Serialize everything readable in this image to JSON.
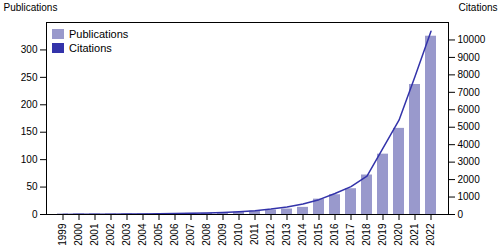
{
  "chart_data": {
    "type": "bar",
    "categories": [
      "1999",
      "2000",
      "2001",
      "2002",
      "2003",
      "2004",
      "2005",
      "2006",
      "2007",
      "2008",
      "2009",
      "2010",
      "2011",
      "2012",
      "2013",
      "2014",
      "2015",
      "2016",
      "2017",
      "2018",
      "2019",
      "2020",
      "2021",
      "2022"
    ],
    "series": [
      {
        "name": "Publications",
        "type": "bar",
        "color": "#9999cc",
        "values": [
          1,
          1,
          1,
          1,
          1,
          1,
          1,
          1,
          2,
          2,
          3,
          4,
          6,
          8,
          10,
          13,
          28,
          36,
          47,
          72,
          110,
          157,
          237,
          325
        ]
      },
      {
        "name": "Citations",
        "type": "line",
        "axis": "y2",
        "color": "#3333aa",
        "values": [
          5,
          10,
          15,
          20,
          25,
          30,
          40,
          55,
          70,
          90,
          120,
          160,
          220,
          310,
          430,
          600,
          850,
          1200,
          1600,
          2200,
          3800,
          5400,
          7900,
          10500
        ]
      }
    ],
    "ylabel": "Publications",
    "y2label": "Citations",
    "ylim": [
      0,
      350
    ],
    "yticks": [
      0,
      50,
      100,
      150,
      200,
      250,
      300
    ],
    "y2lim": [
      0,
      11000
    ],
    "y2ticks": [
      0,
      1000,
      2000,
      3000,
      4000,
      5000,
      6000,
      7000,
      8000,
      9000,
      10000
    ],
    "legend": "upper left",
    "grid": false
  }
}
